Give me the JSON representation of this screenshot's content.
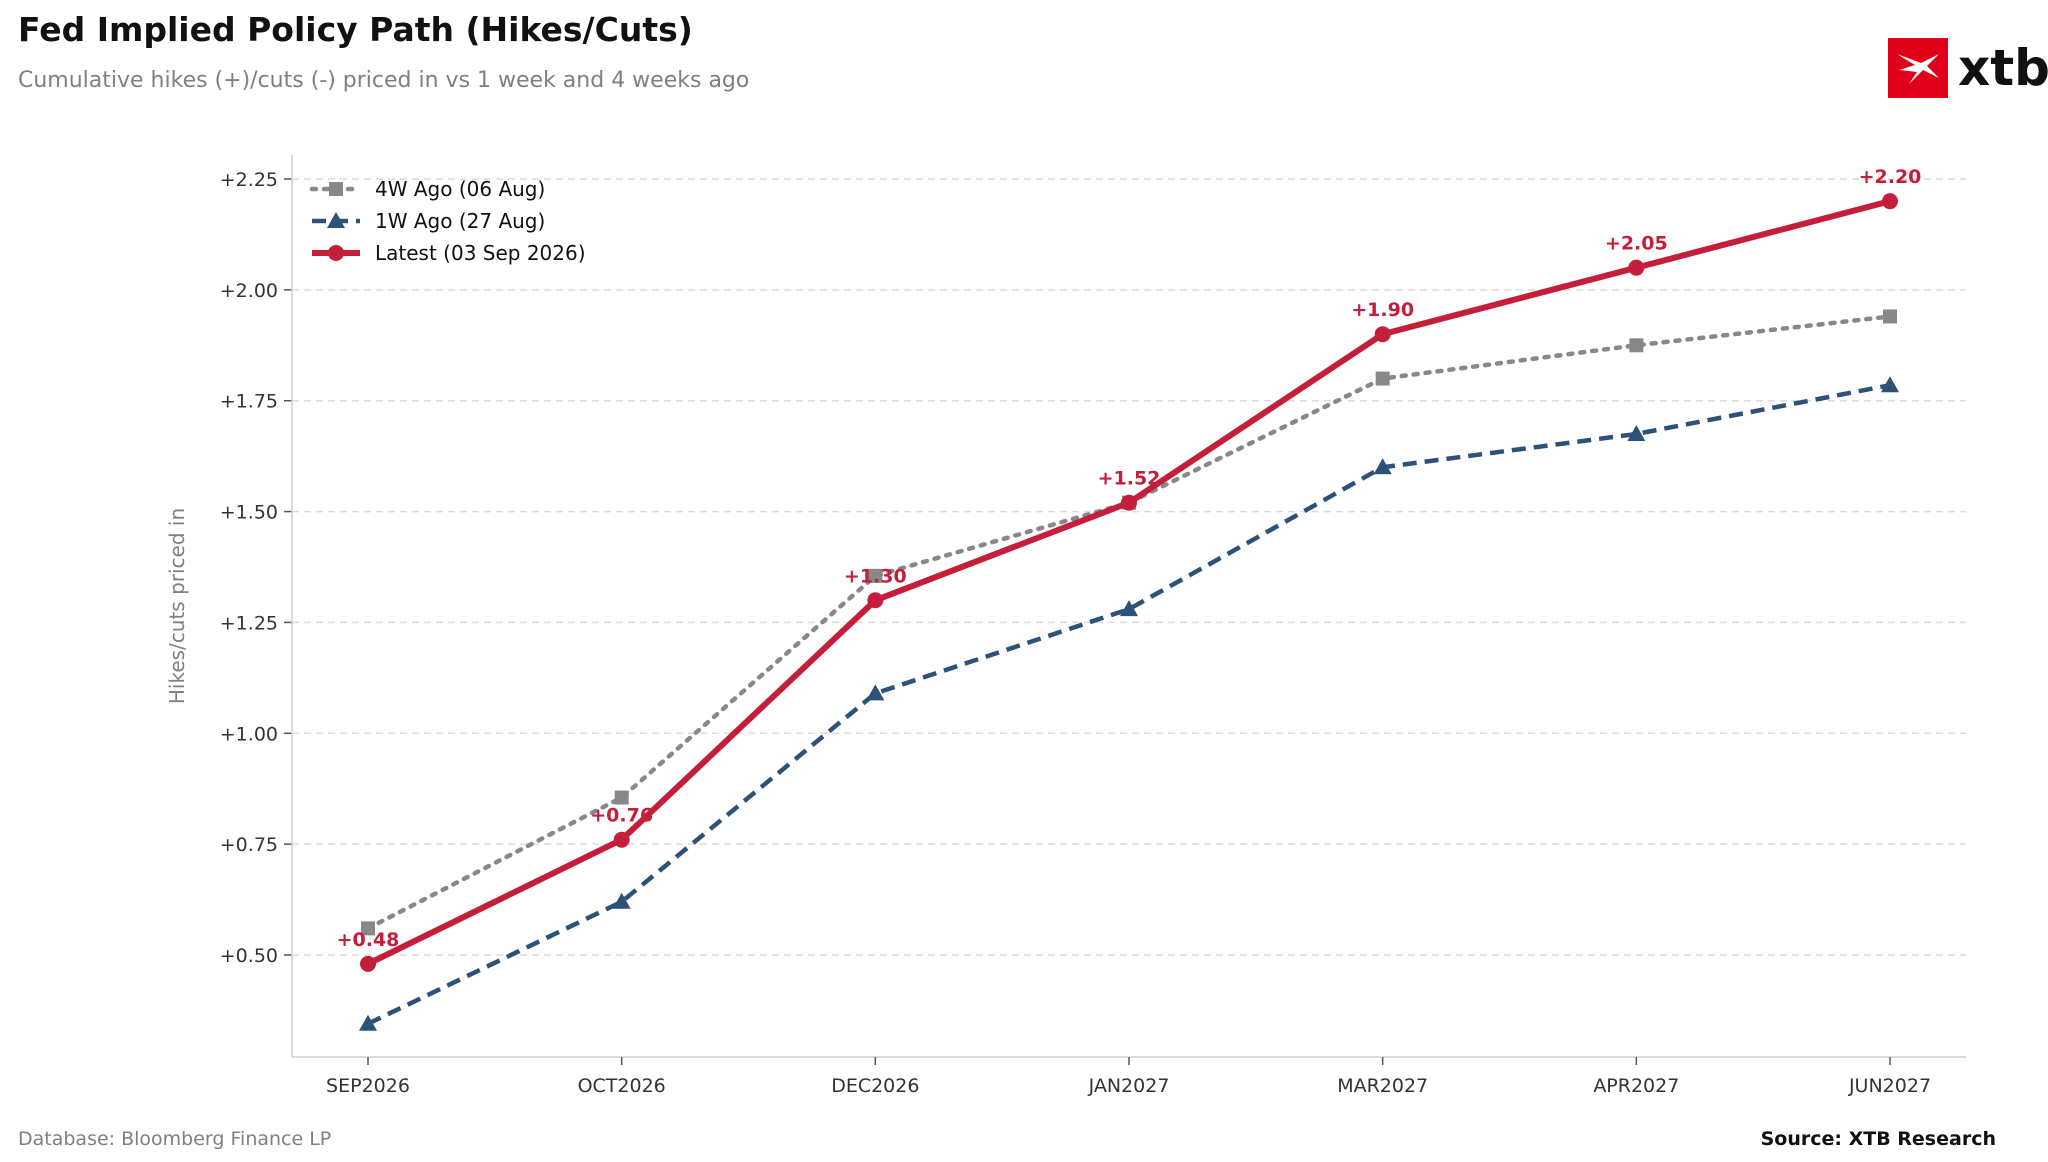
{
  "header": {
    "title": "Fed Implied Policy Path (Hikes/Cuts)",
    "subtitle": "Cumulative hikes (+)/cuts (-) priced in vs 1 week and 4 weeks ago"
  },
  "logo": {
    "text": "xtb",
    "color": "#e1001a"
  },
  "footer": {
    "database": "Database: Bloomberg Finance LP",
    "source": "Source: XTB Research"
  },
  "chart_data": {
    "type": "line",
    "categories": [
      "SEP2026",
      "OCT2026",
      "DEC2026",
      "JAN2027",
      "MAR2027",
      "APR2027",
      "JUN2027"
    ],
    "ylabel": "Hikes/cuts priced in",
    "ylim": [
      0.25,
      2.25
    ],
    "yticks": [
      0.5,
      0.75,
      1.0,
      1.25,
      1.5,
      1.75,
      2.0,
      2.25
    ],
    "ytick_labels": [
      "+0.50",
      "+0.75",
      "+1.00",
      "+1.25",
      "+1.50",
      "+1.75",
      "+2.00",
      "+2.25"
    ],
    "grid": "horizontal dashed",
    "legend_position": "top-left",
    "series": [
      {
        "name": "4W Ago (06 Aug)",
        "values": [
          0.56,
          0.855,
          1.355,
          1.52,
          1.8,
          1.875,
          1.94
        ],
        "color": "#888888",
        "style": "dotted",
        "marker": "square"
      },
      {
        "name": "1W Ago (27 Aug)",
        "values": [
          0.345,
          0.62,
          1.09,
          1.28,
          1.6,
          1.675,
          1.785
        ],
        "color": "#2c5278",
        "style": "dashed",
        "marker": "triangle"
      },
      {
        "name": "Latest (03 Sep 2026)",
        "values": [
          0.48,
          0.76,
          1.3,
          1.52,
          1.9,
          2.05,
          2.2
        ],
        "value_labels": [
          "+0.48",
          "+0.76",
          "+1.30",
          "+1.52",
          "+1.90",
          "+2.05",
          "+2.20"
        ],
        "color": "#c41e3a",
        "style": "solid",
        "marker": "circle"
      }
    ]
  }
}
